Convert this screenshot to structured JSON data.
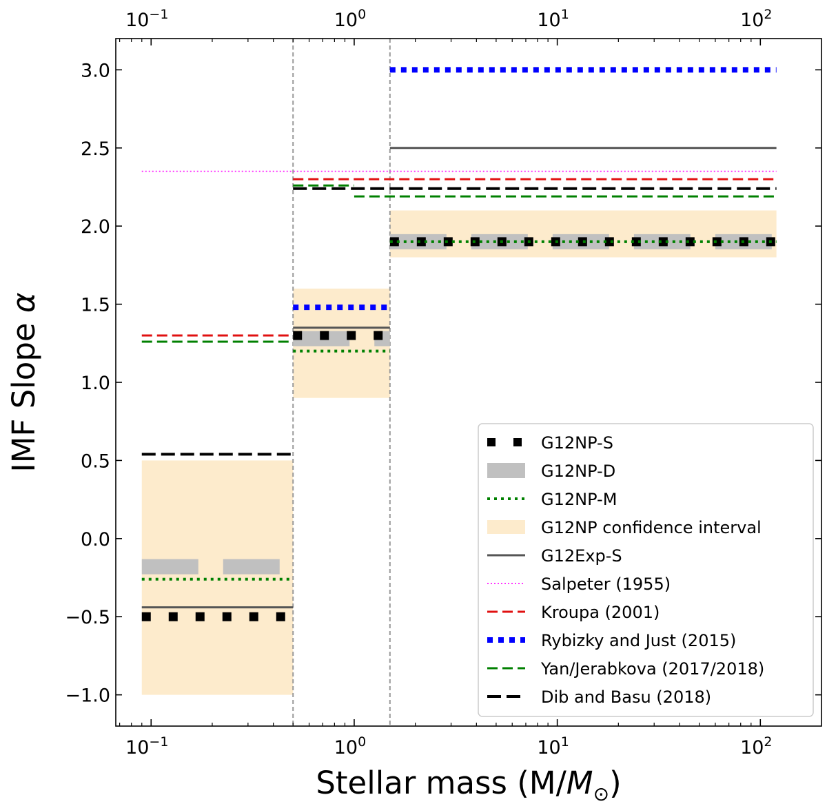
{
  "chart_data": {
    "type": "line",
    "xscale": "log",
    "xlim": [
      0.067,
      200
    ],
    "ylim": [
      -1.2,
      3.2
    ],
    "xlabel": "Stellar mass (M/",
    "xlabel_sub": "M",
    "xlabel_sun": "⊙",
    "xlabel_close": ")",
    "ylabel": "IMF Slope",
    "ylabel_symbol": "α",
    "y_ticks": [
      {
        "value": -1.0,
        "label": "−1.0"
      },
      {
        "value": -0.5,
        "label": "−0.5"
      },
      {
        "value": 0.0,
        "label": "0.0"
      },
      {
        "value": 0.5,
        "label": "0.5"
      },
      {
        "value": 1.0,
        "label": "1.0"
      },
      {
        "value": 1.5,
        "label": "1.5"
      },
      {
        "value": 2.0,
        "label": "2.0"
      },
      {
        "value": 2.5,
        "label": "2.5"
      },
      {
        "value": 3.0,
        "label": "3.0"
      }
    ],
    "x_ticks": [
      {
        "value": 0.1,
        "base": "10",
        "exp": "−1"
      },
      {
        "value": 1,
        "base": "10",
        "exp": "0"
      },
      {
        "value": 10,
        "base": "10",
        "exp": "1"
      },
      {
        "value": 100,
        "base": "10",
        "exp": "2"
      }
    ],
    "vlines": [
      0.5,
      1.5
    ],
    "bands": [
      {
        "x": [
          0.09,
          0.5
        ],
        "y": [
          -1.0,
          0.5
        ],
        "color": "#fdebcc"
      },
      {
        "x": [
          0.5,
          1.5
        ],
        "y": [
          0.9,
          1.6
        ],
        "color": "#fdebcc"
      },
      {
        "x": [
          1.5,
          120
        ],
        "y": [
          1.8,
          2.1
        ],
        "color": "#fdebcc"
      }
    ],
    "series": [
      {
        "name": "G12NP-S",
        "style": "bigdot",
        "color": "#000000",
        "segments": [
          [
            0.09,
            0.5,
            -0.5
          ],
          [
            0.5,
            1.5,
            1.3
          ],
          [
            1.5,
            120,
            1.9
          ]
        ]
      },
      {
        "name": "G12NP-D",
        "style": "wide",
        "color": "#c0c0c0",
        "segments": [
          [
            0.09,
            0.5,
            -0.18
          ],
          [
            0.5,
            1.5,
            1.28
          ],
          [
            1.5,
            120,
            1.9
          ]
        ]
      },
      {
        "name": "G12NP-M",
        "style": "dot",
        "color": "#008000",
        "segments": [
          [
            0.09,
            0.5,
            -0.26
          ],
          [
            0.5,
            1.5,
            1.2
          ],
          [
            1.5,
            120,
            1.9
          ]
        ]
      },
      {
        "name": "G12NP confidence interval",
        "style": "band",
        "color": "#fdebcc",
        "segments": []
      },
      {
        "name": "G12Exp-S",
        "style": "solid",
        "color": "#555555",
        "segments": [
          [
            0.09,
            0.5,
            -0.44
          ],
          [
            0.5,
            1.5,
            1.35
          ],
          [
            1.5,
            120,
            2.5
          ]
        ]
      },
      {
        "name": "Salpeter (1955)",
        "style": "finedot",
        "color": "#ff33ff",
        "segments": [
          [
            0.09,
            120,
            2.35
          ]
        ]
      },
      {
        "name": "Kroupa (2001)",
        "style": "dash",
        "color": "#e01010",
        "segments": [
          [
            0.09,
            0.5,
            1.3
          ],
          [
            0.5,
            120,
            2.3
          ]
        ]
      },
      {
        "name": "Rybizky and Just (2015)",
        "style": "bluedot",
        "color": "#0000ff",
        "segments": [
          [
            0.5,
            1.5,
            1.48
          ],
          [
            1.5,
            120,
            3.0
          ]
        ]
      },
      {
        "name": "Yan/Jerabkova  (2017/2018)",
        "style": "dash",
        "color": "#008000",
        "segments": [
          [
            0.09,
            0.5,
            1.26
          ],
          [
            0.5,
            1.0,
            2.26
          ],
          [
            1.0,
            120,
            2.19
          ]
        ]
      },
      {
        "name": "Dib and Basu (2018)",
        "style": "thickdash",
        "color": "#000000",
        "segments": [
          [
            0.09,
            0.5,
            0.54
          ],
          [
            0.5,
            120,
            2.24
          ]
        ]
      }
    ],
    "legend_position": "lower-right"
  }
}
